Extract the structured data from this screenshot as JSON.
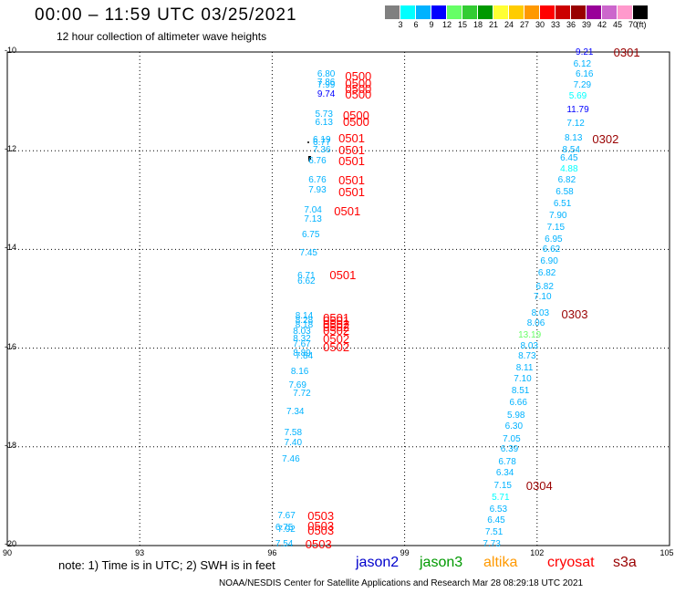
{
  "header": {
    "title": "00:00 – 11:59 UTC 03/25/2021",
    "subtitle": "12 hour collection of altimeter wave heights"
  },
  "colorbar": {
    "colors": [
      "#808080",
      "#00ffff",
      "#00b2ff",
      "#0000ff",
      "#66ff66",
      "#33cc33",
      "#009900",
      "#ffff33",
      "#ffcc00",
      "#ff9900",
      "#ff0000",
      "#cc0000",
      "#990000",
      "#990099",
      "#cc66cc",
      "#ff99cc",
      "#000000"
    ],
    "labels": [
      "3",
      "6",
      "9",
      "12",
      "15",
      "18",
      "21",
      "24",
      "27",
      "30",
      "33",
      "36",
      "39",
      "42",
      "45",
      "70",
      "(ft)"
    ]
  },
  "axes": {
    "y_labels": [
      "-10",
      "-12",
      "-14",
      "-16",
      "-18",
      "-20"
    ],
    "x_labels": [
      "90",
      "93",
      "96",
      "99",
      "102",
      "105"
    ]
  },
  "footer": {
    "note": "note: 1) Time is in UTC; 2) SWH is in feet",
    "legend": [
      {
        "label": "jason2",
        "color": "#0000cc"
      },
      {
        "label": "jason3",
        "color": "#009900"
      },
      {
        "label": "altika",
        "color": "#ff9900"
      },
      {
        "label": "cryosat",
        "color": "#ff0000"
      },
      {
        "label": "s3a",
        "color": "#990000"
      }
    ],
    "credit": "NOAA/NESDIS Center for Satellite Applications and Research   Mar 28 08:29:18 UTC 2021"
  },
  "map_data": {
    "lon_range": [
      90,
      105
    ],
    "lat_range": [
      -20,
      -10
    ],
    "track_times": [
      {
        "text": "0500",
        "lon": 97.9,
        "lat": -10.5,
        "color": "#ff0000"
      },
      {
        "text": "0500",
        "lon": 97.9,
        "lat": -10.64,
        "color": "#ff0000"
      },
      {
        "text": "0500",
        "lon": 97.9,
        "lat": -10.75,
        "color": "#ff0000"
      },
      {
        "text": "0500",
        "lon": 97.9,
        "lat": -10.86,
        "color": "#ff0000"
      },
      {
        "text": "0500",
        "lon": 97.85,
        "lat": -11.3,
        "color": "#ff0000"
      },
      {
        "text": "0500",
        "lon": 97.85,
        "lat": -11.42,
        "color": "#ff0000"
      },
      {
        "text": "0501",
        "lon": 97.75,
        "lat": -11.76,
        "color": "#ff0000"
      },
      {
        "text": "0501",
        "lon": 97.75,
        "lat": -11.99,
        "color": "#ff0000"
      },
      {
        "text": "0501",
        "lon": 97.75,
        "lat": -12.22,
        "color": "#ff0000"
      },
      {
        "text": "0501",
        "lon": 97.75,
        "lat": -12.6,
        "color": "#ff0000"
      },
      {
        "text": "0501",
        "lon": 97.75,
        "lat": -12.84,
        "color": "#ff0000"
      },
      {
        "text": "0501",
        "lon": 97.65,
        "lat": -13.24,
        "color": "#ff0000"
      },
      {
        "text": "0501",
        "lon": 97.55,
        "lat": -14.52,
        "color": "#ff0000"
      },
      {
        "text": "0501",
        "lon": 97.4,
        "lat": -15.39,
        "color": "#ff0000"
      },
      {
        "text": "0501",
        "lon": 97.4,
        "lat": -15.46,
        "color": "#ff0000"
      },
      {
        "text": "0502",
        "lon": 97.4,
        "lat": -15.52,
        "color": "#ff0000"
      },
      {
        "text": "0502",
        "lon": 97.4,
        "lat": -15.58,
        "color": "#ff0000"
      },
      {
        "text": "0502",
        "lon": 97.4,
        "lat": -15.65,
        "color": "#ff0000"
      },
      {
        "text": "0502",
        "lon": 97.4,
        "lat": -15.83,
        "color": "#ff0000"
      },
      {
        "text": "0502",
        "lon": 97.4,
        "lat": -15.98,
        "color": "#ff0000"
      },
      {
        "text": "0503",
        "lon": 97.05,
        "lat": -19.41,
        "color": "#ff0000"
      },
      {
        "text": "0503",
        "lon": 97.05,
        "lat": -19.62,
        "color": "#ff0000"
      },
      {
        "text": "0503",
        "lon": 97.05,
        "lat": -19.7,
        "color": "#ff0000"
      },
      {
        "text": "0503",
        "lon": 97.0,
        "lat": -19.98,
        "color": "#ff0000"
      },
      {
        "text": "0301",
        "lon": 103.98,
        "lat": -10.01,
        "color": "#990000"
      },
      {
        "text": "0302",
        "lon": 103.5,
        "lat": -11.78,
        "color": "#990000"
      },
      {
        "text": "0303",
        "lon": 102.8,
        "lat": -15.32,
        "color": "#990000"
      },
      {
        "text": "0304",
        "lon": 102.0,
        "lat": -18.79,
        "color": "#990000"
      }
    ],
    "swh_points": [
      {
        "value": "6.80",
        "lon": 97.25,
        "lat": -10.47,
        "color": "#00b2ff"
      },
      {
        "value": "7.86",
        "lon": 97.25,
        "lat": -10.62,
        "color": "#00b2ff"
      },
      {
        "value": "7.99",
        "lon": 97.25,
        "lat": -10.69,
        "color": "#00b2ff"
      },
      {
        "value": "9.74",
        "lon": 97.25,
        "lat": -10.86,
        "color": "#0000ff"
      },
      {
        "value": "5.73",
        "lon": 97.2,
        "lat": -11.28,
        "color": "#00b2ff"
      },
      {
        "value": "6.13",
        "lon": 97.2,
        "lat": -11.44,
        "color": "#00b2ff"
      },
      {
        "value": "6.19",
        "lon": 97.15,
        "lat": -11.8,
        "color": "#00b2ff"
      },
      {
        "value": "6.77",
        "lon": 97.15,
        "lat": -11.85,
        "color": "#00b2ff"
      },
      {
        "value": "7.36",
        "lon": 97.15,
        "lat": -11.99,
        "color": "#00b2ff"
      },
      {
        "value": "6.76",
        "lon": 97.05,
        "lat": -12.22,
        "color": "#00b2ff"
      },
      {
        "value": "6.76",
        "lon": 97.05,
        "lat": -12.6,
        "color": "#00b2ff"
      },
      {
        "value": "7.93",
        "lon": 97.05,
        "lat": -12.81,
        "color": "#00b2ff"
      },
      {
        "value": "7.04",
        "lon": 96.95,
        "lat": -13.22,
        "color": "#00b2ff"
      },
      {
        "value": "7.13",
        "lon": 96.95,
        "lat": -13.4,
        "color": "#00b2ff"
      },
      {
        "value": "6.75",
        "lon": 96.9,
        "lat": -13.71,
        "color": "#00b2ff"
      },
      {
        "value": "7.45",
        "lon": 96.85,
        "lat": -14.08,
        "color": "#00b2ff"
      },
      {
        "value": "6.71",
        "lon": 96.8,
        "lat": -14.54,
        "color": "#00b2ff"
      },
      {
        "value": "6.62",
        "lon": 96.8,
        "lat": -14.66,
        "color": "#00b2ff"
      },
      {
        "value": "8.14",
        "lon": 96.75,
        "lat": -15.36,
        "color": "#00b2ff"
      },
      {
        "value": "8.28",
        "lon": 96.75,
        "lat": -15.46,
        "color": "#00b2ff"
      },
      {
        "value": "8.18",
        "lon": 96.75,
        "lat": -15.54,
        "color": "#00b2ff"
      },
      {
        "value": "8.03",
        "lon": 96.7,
        "lat": -15.68,
        "color": "#00b2ff"
      },
      {
        "value": "8.32",
        "lon": 96.7,
        "lat": -15.83,
        "color": "#00b2ff"
      },
      {
        "value": "7.67",
        "lon": 96.7,
        "lat": -15.94,
        "color": "#00b2ff"
      },
      {
        "value": "8.89",
        "lon": 96.7,
        "lat": -16.11,
        "color": "#00b2ff"
      },
      {
        "value": "7.84",
        "lon": 96.75,
        "lat": -16.18,
        "color": "#00b2ff"
      },
      {
        "value": "8.16",
        "lon": 96.65,
        "lat": -16.48,
        "color": "#00b2ff"
      },
      {
        "value": "7.69",
        "lon": 96.6,
        "lat": -16.77,
        "color": "#00b2ff"
      },
      {
        "value": "7.72",
        "lon": 96.7,
        "lat": -16.94,
        "color": "#00b2ff"
      },
      {
        "value": "7.34",
        "lon": 96.55,
        "lat": -17.31,
        "color": "#00b2ff"
      },
      {
        "value": "7.58",
        "lon": 96.5,
        "lat": -17.73,
        "color": "#00b2ff"
      },
      {
        "value": "7.40",
        "lon": 96.5,
        "lat": -17.93,
        "color": "#00b2ff"
      },
      {
        "value": "7.46",
        "lon": 96.45,
        "lat": -18.27,
        "color": "#00b2ff"
      },
      {
        "value": "7.67",
        "lon": 96.35,
        "lat": -19.41,
        "color": "#00b2ff"
      },
      {
        "value": "6.75",
        "lon": 96.3,
        "lat": -19.64,
        "color": "#00b2ff"
      },
      {
        "value": "7.92",
        "lon": 96.35,
        "lat": -19.69,
        "color": "#00b2ff"
      },
      {
        "value": "7.54",
        "lon": 96.3,
        "lat": -19.98,
        "color": "#00b2ff"
      },
      {
        "value": "9.21",
        "lon": 103.1,
        "lat": -10.01,
        "color": "#0000ff"
      },
      {
        "value": "6.12",
        "lon": 103.05,
        "lat": -10.25,
        "color": "#00b2ff"
      },
      {
        "value": "6.16",
        "lon": 103.1,
        "lat": -10.47,
        "color": "#00b2ff"
      },
      {
        "value": "7.29",
        "lon": 103.05,
        "lat": -10.69,
        "color": "#00b2ff"
      },
      {
        "value": "5.69",
        "lon": 102.95,
        "lat": -10.91,
        "color": "#00ffff"
      },
      {
        "value": "11.79",
        "lon": 102.9,
        "lat": -11.18,
        "color": "#0000ff"
      },
      {
        "value": "7.12",
        "lon": 102.9,
        "lat": -11.46,
        "color": "#00b2ff"
      },
      {
        "value": "8.13",
        "lon": 102.85,
        "lat": -11.76,
        "color": "#00b2ff"
      },
      {
        "value": "8.54",
        "lon": 102.8,
        "lat": -11.99,
        "color": "#00b2ff"
      },
      {
        "value": "6.45",
        "lon": 102.75,
        "lat": -12.16,
        "color": "#00b2ff"
      },
      {
        "value": "4.88",
        "lon": 102.75,
        "lat": -12.38,
        "color": "#00ffff"
      },
      {
        "value": "6.82",
        "lon": 102.7,
        "lat": -12.6,
        "color": "#00b2ff"
      },
      {
        "value": "6.58",
        "lon": 102.65,
        "lat": -12.84,
        "color": "#00b2ff"
      },
      {
        "value": "6.51",
        "lon": 102.6,
        "lat": -13.08,
        "color": "#00b2ff"
      },
      {
        "value": "7.90",
        "lon": 102.5,
        "lat": -13.32,
        "color": "#00b2ff"
      },
      {
        "value": "7.15",
        "lon": 102.45,
        "lat": -13.56,
        "color": "#00b2ff"
      },
      {
        "value": "6.95",
        "lon": 102.4,
        "lat": -13.8,
        "color": "#00b2ff"
      },
      {
        "value": "6.62",
        "lon": 102.35,
        "lat": -14.02,
        "color": "#00b2ff"
      },
      {
        "value": "6.90",
        "lon": 102.3,
        "lat": -14.26,
        "color": "#00b2ff"
      },
      {
        "value": "6.82",
        "lon": 102.25,
        "lat": -14.5,
        "color": "#00b2ff"
      },
      {
        "value": "6.82",
        "lon": 102.2,
        "lat": -14.76,
        "color": "#00b2ff"
      },
      {
        "value": "7.10",
        "lon": 102.15,
        "lat": -14.98,
        "color": "#00b2ff"
      },
      {
        "value": "8.03",
        "lon": 102.1,
        "lat": -15.3,
        "color": "#00b2ff"
      },
      {
        "value": "8.06",
        "lon": 102.0,
        "lat": -15.5,
        "color": "#00b2ff"
      },
      {
        "value": "13.19",
        "lon": 101.8,
        "lat": -15.74,
        "color": "#66ff66"
      },
      {
        "value": "8.03",
        "lon": 101.85,
        "lat": -15.97,
        "color": "#00b2ff"
      },
      {
        "value": "8.73",
        "lon": 101.8,
        "lat": -16.18,
        "color": "#00b2ff"
      },
      {
        "value": "8.11",
        "lon": 101.75,
        "lat": -16.42,
        "color": "#00b2ff"
      },
      {
        "value": "7.10",
        "lon": 101.7,
        "lat": -16.64,
        "color": "#00b2ff"
      },
      {
        "value": "8.51",
        "lon": 101.65,
        "lat": -16.88,
        "color": "#00b2ff"
      },
      {
        "value": "6.66",
        "lon": 101.6,
        "lat": -17.12,
        "color": "#00b2ff"
      },
      {
        "value": "5.98",
        "lon": 101.55,
        "lat": -17.38,
        "color": "#00b2ff"
      },
      {
        "value": "6.30",
        "lon": 101.5,
        "lat": -17.6,
        "color": "#00b2ff"
      },
      {
        "value": "7.05",
        "lon": 101.45,
        "lat": -17.86,
        "color": "#00b2ff"
      },
      {
        "value": "6.39",
        "lon": 101.4,
        "lat": -18.06,
        "color": "#00b2ff"
      },
      {
        "value": "6.78",
        "lon": 101.35,
        "lat": -18.32,
        "color": "#00b2ff"
      },
      {
        "value": "6.34",
        "lon": 101.3,
        "lat": -18.54,
        "color": "#00b2ff"
      },
      {
        "value": "7.15",
        "lon": 101.25,
        "lat": -18.79,
        "color": "#00b2ff"
      },
      {
        "value": "5.71",
        "lon": 101.2,
        "lat": -19.03,
        "color": "#00ffff"
      },
      {
        "value": "6.53",
        "lon": 101.15,
        "lat": -19.27,
        "color": "#00b2ff"
      },
      {
        "value": "6.45",
        "lon": 101.1,
        "lat": -19.5,
        "color": "#00b2ff"
      },
      {
        "value": "7.51",
        "lon": 101.05,
        "lat": -19.74,
        "color": "#00b2ff"
      },
      {
        "value": "7.73",
        "lon": 101.0,
        "lat": -19.98,
        "color": "#00b2ff"
      }
    ]
  }
}
